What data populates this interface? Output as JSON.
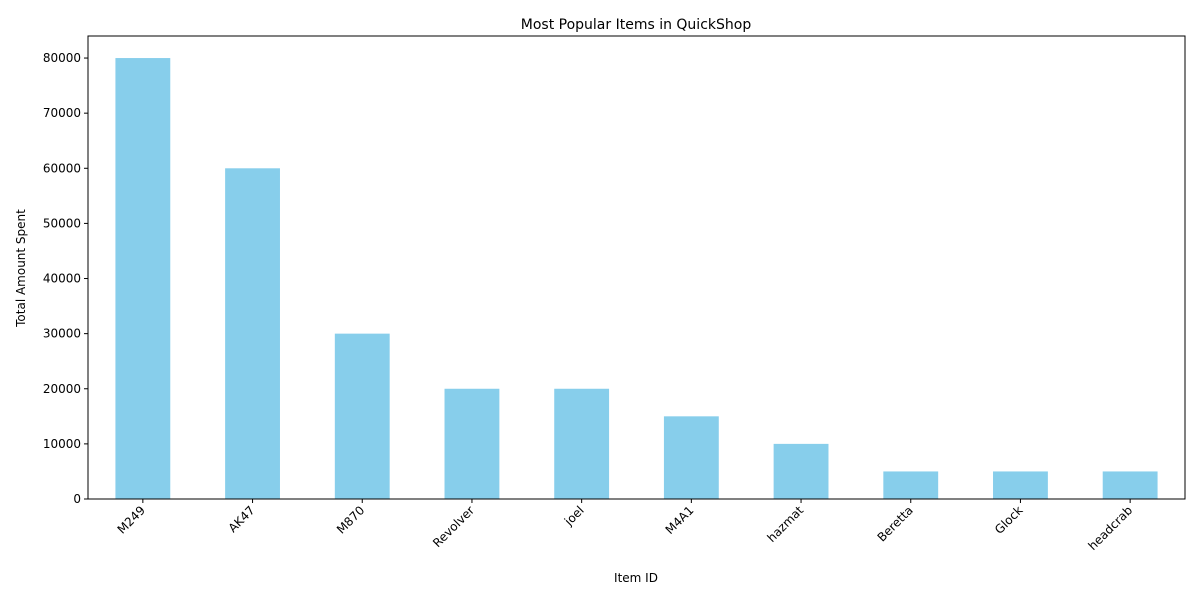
{
  "chart_data": {
    "type": "bar",
    "title": "Most Popular Items in QuickShop",
    "xlabel": "Item ID",
    "ylabel": "Total Amount Spent",
    "categories": [
      "M249",
      "AK47",
      "M870",
      "Revolver",
      "joel",
      "M4A1",
      "hazmat",
      "Beretta",
      "Glock",
      "headcrab"
    ],
    "values": [
      80000,
      60000,
      30000,
      20000,
      20000,
      15000,
      10000,
      5000,
      5000,
      5000
    ],
    "ylim": [
      0,
      84000
    ],
    "yticks": [
      0,
      10000,
      20000,
      30000,
      40000,
      50000,
      60000,
      70000,
      80000
    ],
    "bar_color": "#87ceeb",
    "grid": false,
    "legend": "none"
  }
}
